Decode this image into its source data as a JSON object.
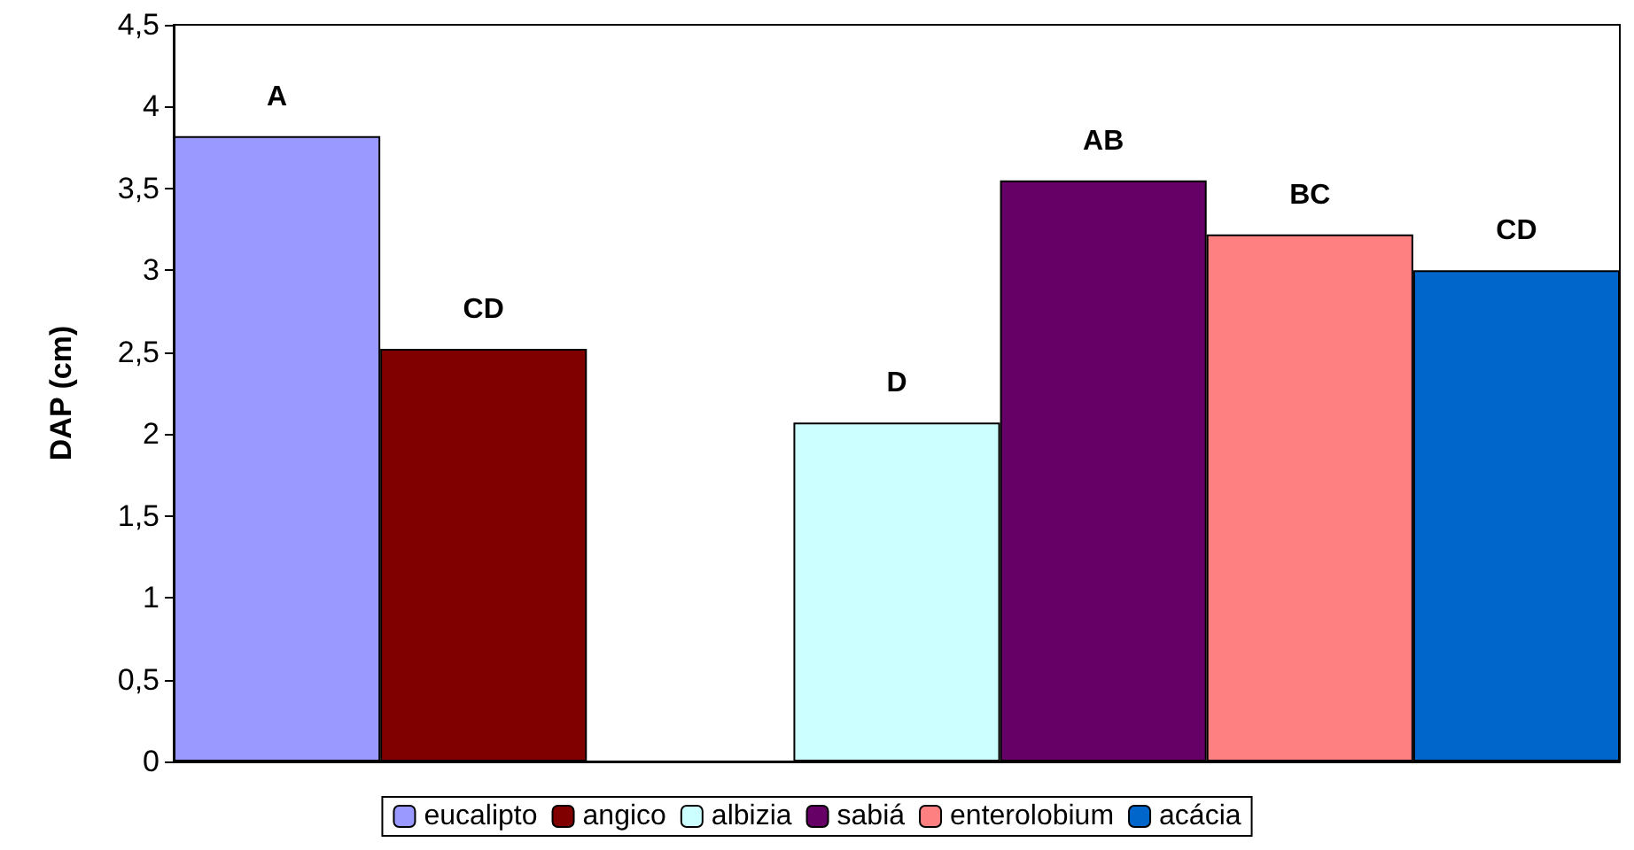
{
  "chart_data": {
    "type": "bar",
    "ylabel": "DAP (cm)",
    "categories": [
      null,
      null,
      null,
      null,
      null,
      null,
      null
    ],
    "stacked": true,
    "series": [
      {
        "name": "eucalipto",
        "color": "#9999ff",
        "values": [
          3.82,
          null,
          null,
          null,
          null,
          null,
          null
        ],
        "value_labels": [
          "A",
          null,
          null,
          null,
          null,
          null,
          null
        ]
      },
      {
        "name": "angico",
        "color": "#800000",
        "values": [
          null,
          2.52,
          null,
          null,
          null,
          null,
          null
        ],
        "value_labels": [
          null,
          "CD",
          null,
          null,
          null,
          null,
          null
        ]
      },
      {
        "name": "albizia",
        "color": "#ccffff",
        "values": [
          null,
          null,
          null,
          2.07,
          null,
          null,
          null
        ],
        "value_labels": [
          null,
          null,
          null,
          "D",
          null,
          null,
          null
        ]
      },
      {
        "name": "sabiá",
        "color": "#660066",
        "values": [
          null,
          null,
          null,
          null,
          3.55,
          null,
          null
        ],
        "value_labels": [
          null,
          null,
          null,
          null,
          "AB",
          null,
          null
        ]
      },
      {
        "name": "enterolobium",
        "color": "#ff8080",
        "values": [
          null,
          null,
          null,
          null,
          null,
          3.22,
          null
        ],
        "value_labels": [
          null,
          null,
          null,
          null,
          null,
          "BC",
          null
        ]
      },
      {
        "name": "acácia",
        "color": "#0066cc",
        "values": [
          null,
          null,
          null,
          null,
          null,
          null,
          3.0
        ],
        "value_labels": [
          null,
          null,
          null,
          null,
          null,
          null,
          "CD"
        ]
      }
    ],
    "ylim": [
      0,
      4.5
    ],
    "yticks": [
      {
        "value": 0,
        "label": "0"
      },
      {
        "value": 0.5,
        "label": "0,5"
      },
      {
        "value": 1,
        "label": "1"
      },
      {
        "value": 1.5,
        "label": "1,5"
      },
      {
        "value": 2,
        "label": "2"
      },
      {
        "value": 2.5,
        "label": "2,5"
      },
      {
        "value": 3,
        "label": "3"
      },
      {
        "value": 3.5,
        "label": "3,5"
      },
      {
        "value": 4,
        "label": "4"
      },
      {
        "value": 4.5,
        "label": "4,5"
      }
    ],
    "grid": false,
    "legend": "bottom"
  }
}
